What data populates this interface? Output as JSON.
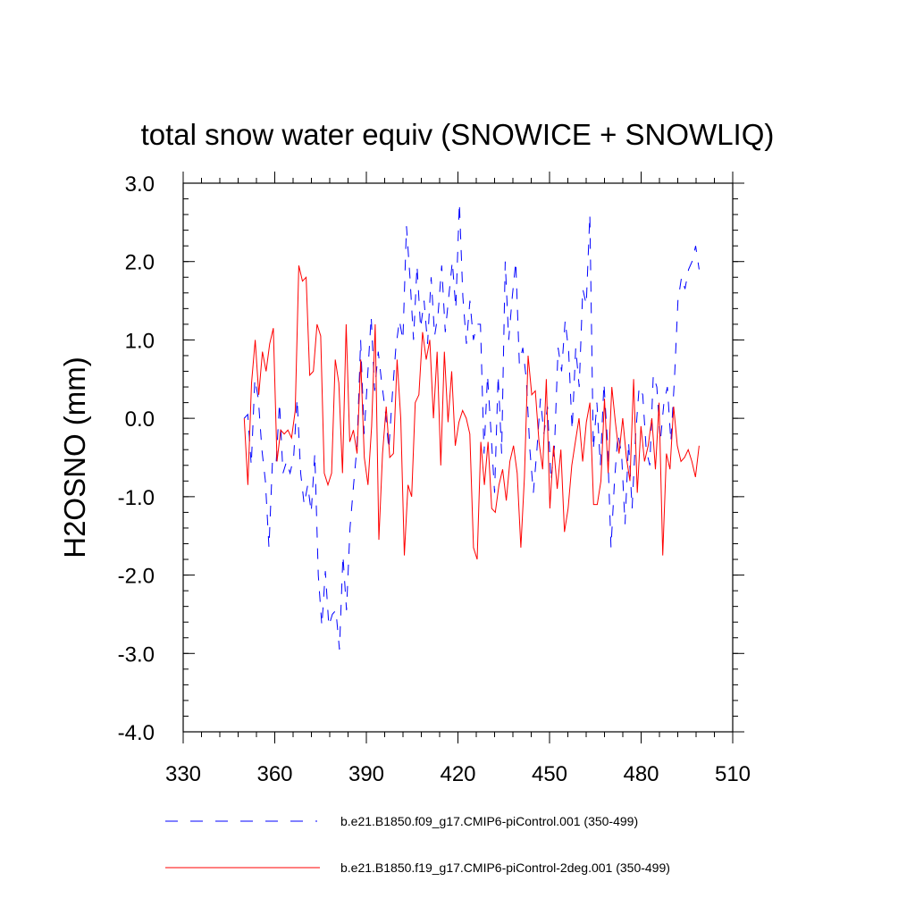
{
  "chart_data": {
    "type": "line",
    "title": "total snow water equiv (SNOWICE + SNOWLIQ)",
    "ylabel": "H2OSNO  (mm)",
    "xlabel": "",
    "xlim": [
      330,
      510
    ],
    "ylim": [
      -4.0,
      3.0
    ],
    "x_tick_values": [
      330,
      360,
      390,
      420,
      450,
      480,
      510
    ],
    "x_tick_labels": [
      "330",
      "360",
      "390",
      "420",
      "450",
      "480",
      "510"
    ],
    "y_tick_values": [
      3,
      2,
      1,
      0,
      -1,
      -2,
      -3,
      -4
    ],
    "y_tick_labels": [
      "3.0",
      "2.0",
      "1.0",
      "0.0",
      "-1.0",
      "-2.0",
      "-3.0",
      "-4.0"
    ],
    "x_start": 350,
    "series": [
      {
        "name": "b.e21.B1850.f09_g17.CMIP6-piControl.001 (350-499)",
        "color": "#0000ff",
        "dash": "dashed",
        "values": [
          0.0,
          0.05,
          -0.6,
          0.5,
          0.25,
          -0.4,
          -0.8,
          -1.65,
          -0.55,
          -0.6,
          0.2,
          -0.7,
          -0.55,
          -0.7,
          -0.5,
          0.25,
          -0.7,
          -1.1,
          -0.85,
          -1.2,
          -0.45,
          -2.0,
          -2.65,
          -1.95,
          -2.65,
          -2.5,
          -2.45,
          -2.95,
          -1.75,
          -2.45,
          -1.4,
          -0.85,
          -0.35,
          1.0,
          -0.2,
          0.55,
          1.3,
          0.35,
          0.85,
          0.45,
          0.1,
          -0.4,
          0.3,
          0.9,
          1.25,
          1.0,
          2.45,
          1.8,
          1.0,
          1.95,
          1.15,
          1.5,
          0.95,
          1.8,
          1.05,
          1.35,
          1.95,
          1.1,
          1.55,
          2.0,
          1.4,
          2.75,
          1.55,
          0.95,
          1.5,
          1.0,
          1.2,
          1.2,
          -0.45,
          0.55,
          -0.2,
          -0.95,
          0.55,
          -0.45,
          2.0,
          1.0,
          1.55,
          2.0,
          0.7,
          0.9,
          0.5,
          -0.4,
          -0.95,
          -0.4,
          0.25,
          -0.2,
          0.15,
          -0.8,
          -0.35,
          0.9,
          0.6,
          1.25,
          0.85,
          -0.15,
          0.9,
          0.4,
          1.65,
          1.45,
          2.6,
          -0.4,
          0.2,
          -0.6,
          0.45,
          -0.3,
          -1.65,
          -0.8,
          -0.2,
          -0.45,
          -1.35,
          -0.3,
          -1.15,
          -0.2,
          0.4,
          0.3,
          -0.4,
          -0.6,
          0.55,
          0.4,
          -0.3,
          0.2,
          0.4,
          -0.3,
          0.5,
          1.5,
          1.8,
          1.65,
          1.9,
          2.0,
          2.2,
          1.9
        ],
        "x_end": 499
      },
      {
        "name": "b.e21.B1850.f19_g17.CMIP6-piControl-2deg.001 (350-499)",
        "color": "#ff0000",
        "dash": "solid",
        "values": [
          0.0,
          -0.85,
          0.45,
          1.0,
          0.3,
          0.85,
          0.6,
          0.95,
          1.15,
          -0.55,
          -0.15,
          -0.2,
          -0.15,
          -0.25,
          0.1,
          1.95,
          1.75,
          1.8,
          0.55,
          0.6,
          1.2,
          1.05,
          -0.7,
          -0.85,
          -0.7,
          0.75,
          0.45,
          -0.7,
          1.2,
          -0.3,
          -0.15,
          -0.45,
          0.75,
          -0.5,
          -0.85,
          -0.1,
          1.2,
          -1.55,
          -0.45,
          0.15,
          -0.5,
          -0.45,
          0.75,
          0.0,
          -1.75,
          -0.85,
          -1.0,
          0.2,
          0.3,
          1.1,
          0.75,
          1.0,
          0.0,
          0.85,
          -0.6,
          0.85,
          -0.05,
          0.6,
          -0.35,
          -0.05,
          0.1,
          0.0,
          -0.2,
          -1.65,
          -1.8,
          -0.3,
          -0.85,
          -0.3,
          -1.15,
          -1.2,
          -0.85,
          -0.65,
          -1.05,
          -0.55,
          -0.35,
          -0.7,
          -1.65,
          -0.75,
          0.8,
          0.3,
          0.35,
          -0.3,
          -0.65,
          0.5,
          -1.15,
          -0.35,
          -0.9,
          -0.4,
          -1.45,
          -1.15,
          -0.6,
          -0.3,
          0.0,
          -0.55,
          -0.05,
          0.2,
          -1.1,
          -1.1,
          -0.8,
          0.25,
          -0.7,
          0.4,
          -0.05,
          -0.45,
          0.0,
          -0.5,
          -0.8,
          0.5,
          -0.95,
          -0.1,
          -0.55,
          -0.35,
          0.0,
          -0.65,
          0.2,
          -1.75,
          -0.45,
          -0.65,
          0.15,
          -0.35,
          -0.55,
          -0.5,
          -0.4,
          -0.55,
          -0.75,
          -0.35
        ],
        "x_end": 499
      }
    ]
  },
  "legend": {
    "items": [
      {
        "label": "b.e21.B1850.f09_g17.CMIP6-piControl.001 (350-499)",
        "color": "#0000ff",
        "style": "dashed"
      },
      {
        "label": "b.e21.B1850.f19_g17.CMIP6-piControl-2deg.001 (350-499)",
        "color": "#ff0000",
        "style": "solid"
      }
    ]
  }
}
